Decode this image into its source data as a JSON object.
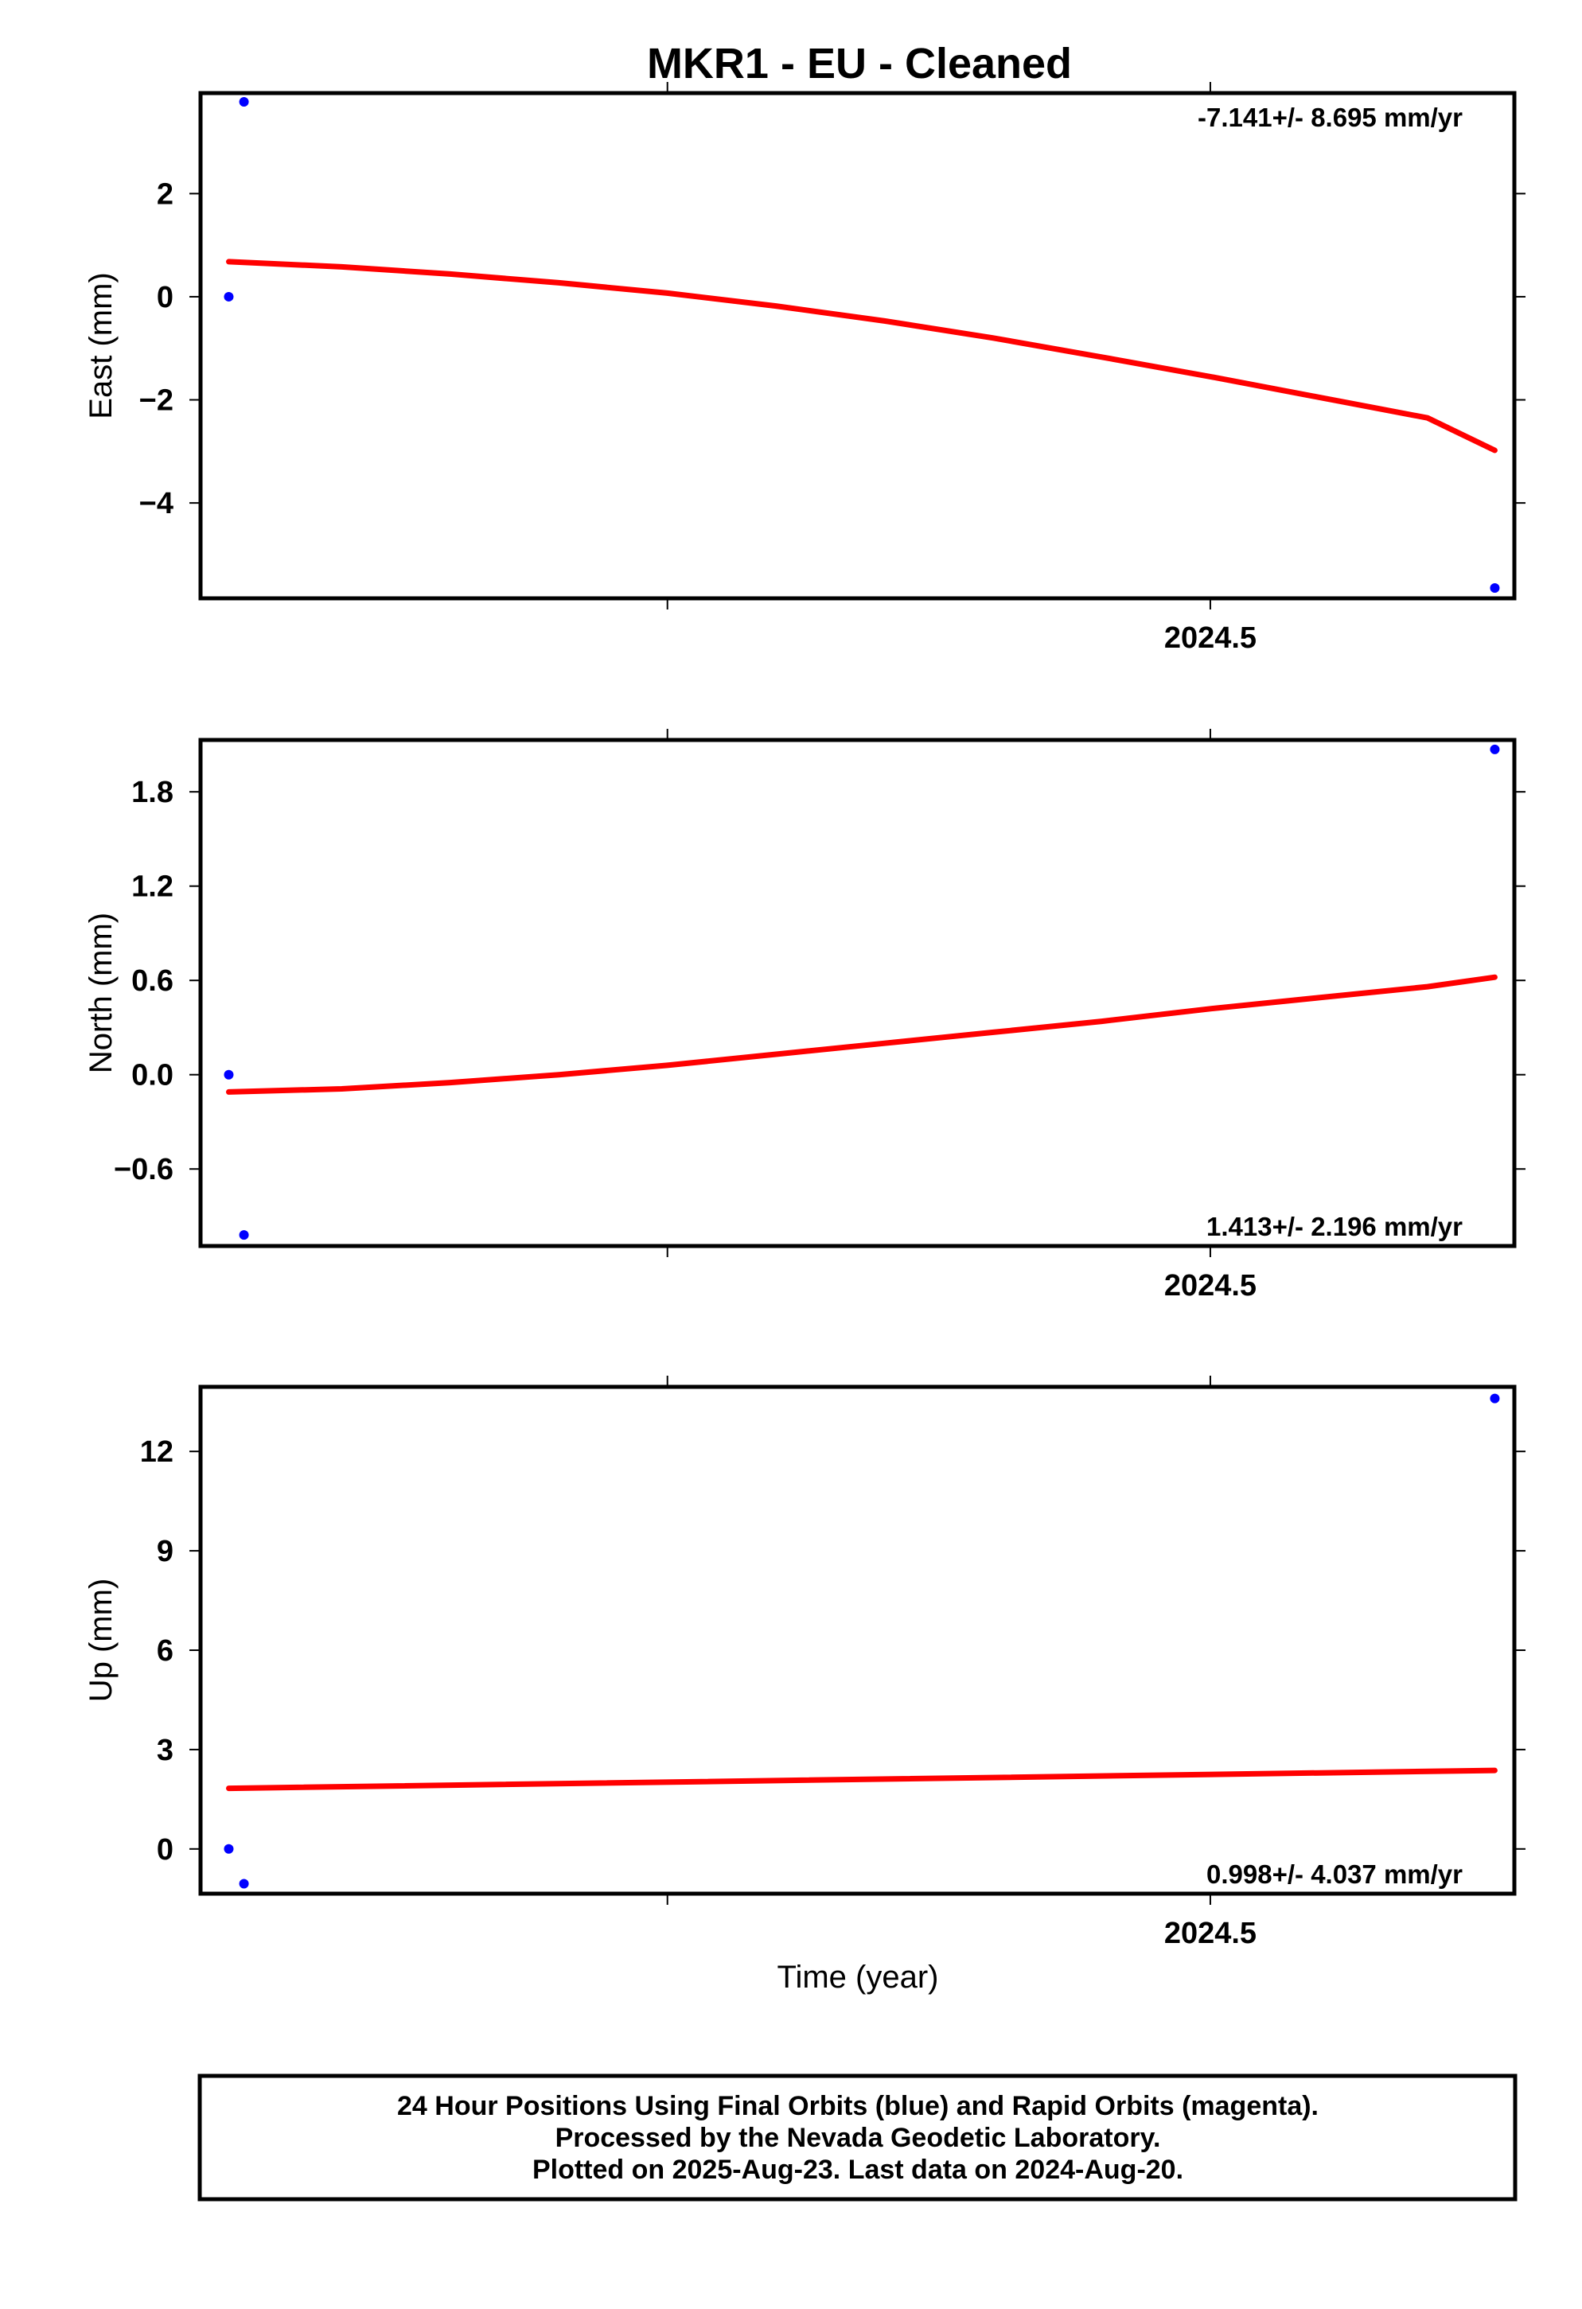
{
  "title": "MKR1  - EU - Cleaned",
  "xlabel": "Time (year)",
  "footer": {
    "lines": [
      "24 Hour Positions Using Final Orbits (blue) and Rapid Orbits (magenta).",
      "Processed by the Nevada Geodetic Laboratory.",
      "Plotted on 2025-Aug-23. Last data on 2024-Aug-20."
    ]
  },
  "colors": {
    "points": "#0000ff",
    "fit": "#ff0000",
    "frame": "#000000"
  },
  "chart_data": [
    {
      "type": "scatter",
      "ylabel": "East (mm)",
      "rate_text": "-7.141+/- 8.695 mm/yr",
      "rate_position": "top-right",
      "xlim": [
        2024.035,
        2024.64
      ],
      "ylim": [
        -5.85,
        3.95
      ],
      "xticks": [
        {
          "v": 2024.5,
          "label": "2024.5"
        }
      ],
      "minor_xticks": [
        2024.25,
        2024.5,
        2024.75
      ],
      "yticks": [
        {
          "v": 2,
          "label": "2"
        },
        {
          "v": 0,
          "label": "0"
        },
        {
          "v": -2,
          "label": "−2"
        },
        {
          "v": -4,
          "label": "−4"
        }
      ],
      "points": [
        {
          "x": 2024.048,
          "y": 0.0
        },
        {
          "x": 2024.055,
          "y": 3.78
        },
        {
          "x": 2024.631,
          "y": -5.65
        }
      ],
      "fit": {
        "x": [
          2024.048,
          2024.1,
          2024.15,
          2024.2,
          2024.25,
          2024.3,
          2024.35,
          2024.4,
          2024.45,
          2024.5,
          2024.55,
          2024.6,
          2024.631
        ],
        "y": [
          0.68,
          0.58,
          0.44,
          0.27,
          0.07,
          -0.18,
          -0.47,
          -0.8,
          -1.17,
          -1.55,
          -1.95,
          -2.35,
          -2.98
        ]
      }
    },
    {
      "type": "scatter",
      "ylabel": "North (mm)",
      "rate_text": "1.413+/- 2.196 mm/yr",
      "rate_position": "bottom-right",
      "xlim": [
        2024.035,
        2024.64
      ],
      "ylim": [
        -1.09,
        2.13
      ],
      "xticks": [
        {
          "v": 2024.5,
          "label": "2024.5"
        }
      ],
      "minor_xticks": [
        2024.25,
        2024.5,
        2024.75
      ],
      "yticks": [
        {
          "v": 1.8,
          "label": "1.8"
        },
        {
          "v": 1.2,
          "label": "1.2"
        },
        {
          "v": 0.6,
          "label": "0.6"
        },
        {
          "v": 0.0,
          "label": "0.0"
        },
        {
          "v": -0.6,
          "label": "−0.6"
        }
      ],
      "points": [
        {
          "x": 2024.048,
          "y": 0.0
        },
        {
          "x": 2024.055,
          "y": -1.02
        },
        {
          "x": 2024.631,
          "y": 2.07
        }
      ],
      "fit": {
        "x": [
          2024.048,
          2024.1,
          2024.15,
          2024.2,
          2024.25,
          2024.3,
          2024.35,
          2024.4,
          2024.45,
          2024.5,
          2024.55,
          2024.6,
          2024.631
        ],
        "y": [
          -0.11,
          -0.09,
          -0.05,
          0.0,
          0.06,
          0.13,
          0.2,
          0.27,
          0.34,
          0.42,
          0.49,
          0.56,
          0.62
        ]
      }
    },
    {
      "type": "scatter",
      "ylabel": "Up (mm)",
      "rate_text": "0.998+/- 4.037 mm/yr",
      "rate_position": "bottom-right",
      "xlim": [
        2024.035,
        2024.64
      ],
      "ylim": [
        -1.35,
        13.95
      ],
      "xticks": [
        {
          "v": 2024.5,
          "label": "2024.5"
        }
      ],
      "minor_xticks": [
        2024.25,
        2024.5,
        2024.75
      ],
      "yticks": [
        {
          "v": 12,
          "label": "12"
        },
        {
          "v": 9,
          "label": "9"
        },
        {
          "v": 6,
          "label": "6"
        },
        {
          "v": 3,
          "label": "3"
        },
        {
          "v": 0,
          "label": "0"
        }
      ],
      "points": [
        {
          "x": 2024.048,
          "y": 0.0
        },
        {
          "x": 2024.055,
          "y": -1.05
        },
        {
          "x": 2024.631,
          "y": 13.6
        }
      ],
      "fit": {
        "x": [
          2024.048,
          2024.631
        ],
        "y": [
          1.83,
          2.37
        ]
      }
    }
  ]
}
